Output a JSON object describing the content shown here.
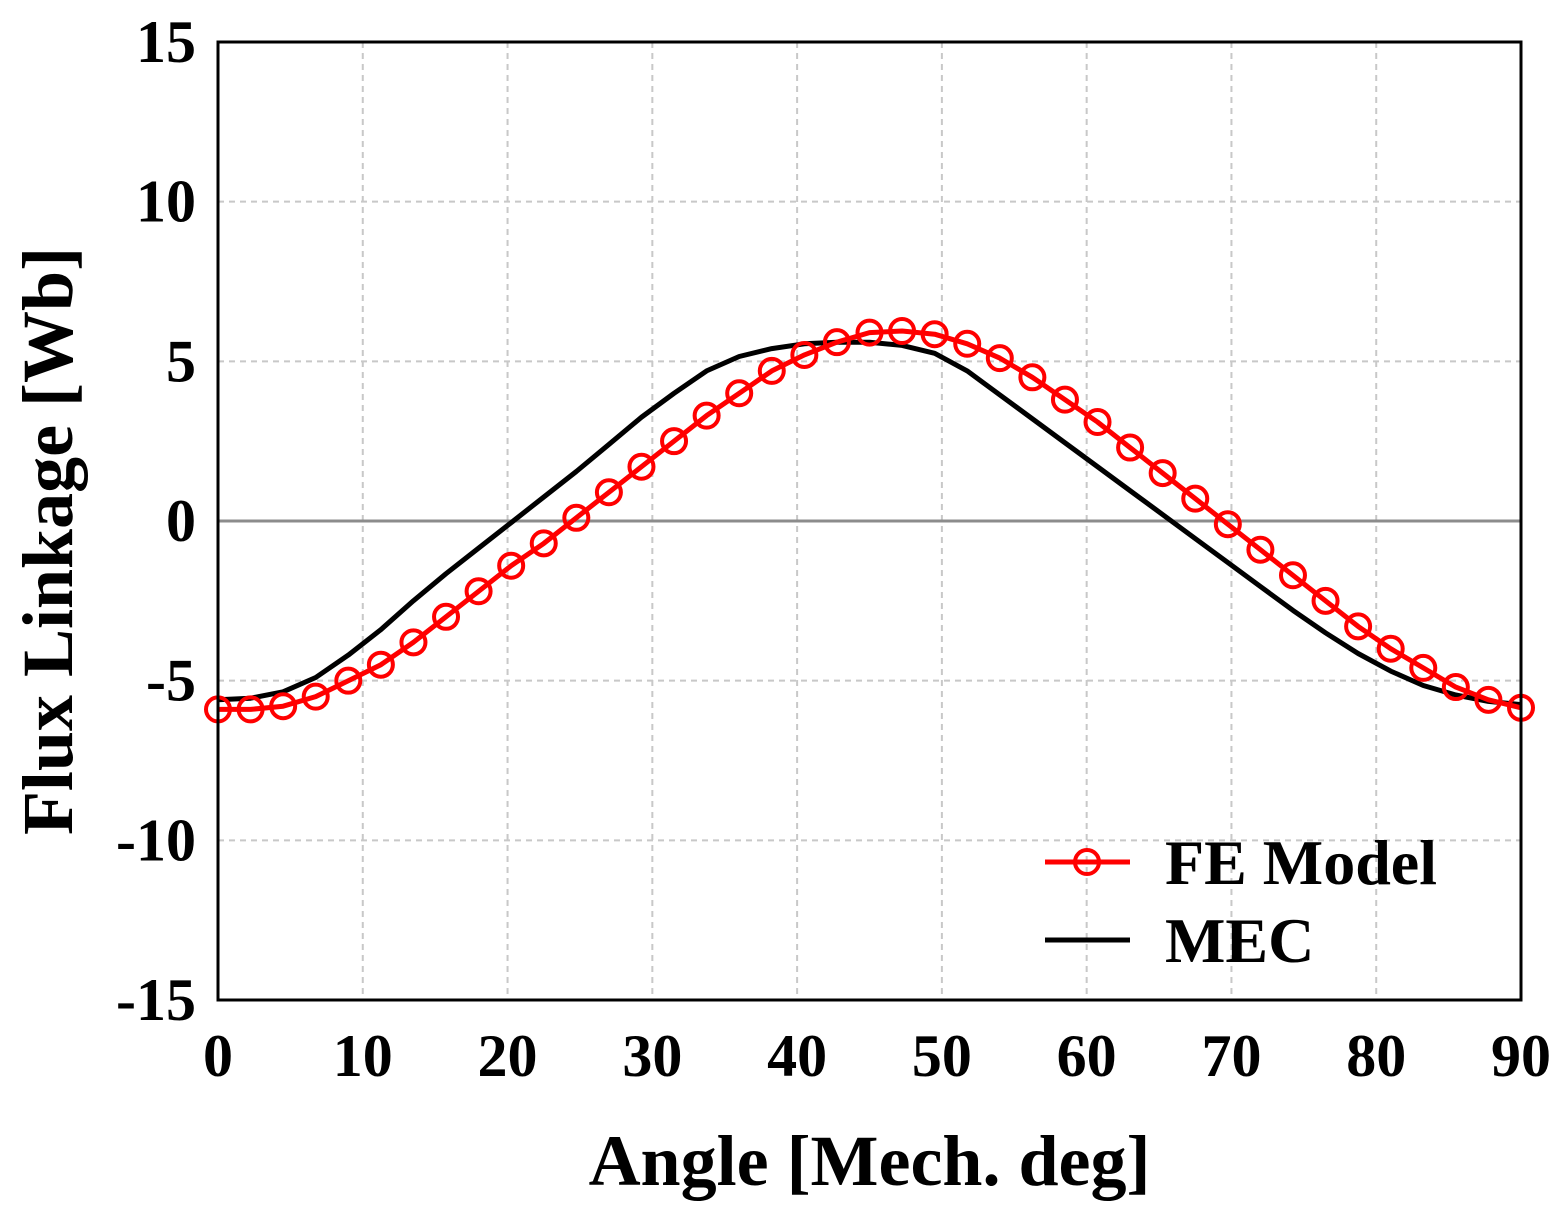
{
  "chart_data": {
    "type": "line",
    "title": "",
    "xlabel": "Angle [Mech. deg]",
    "ylabel": "Flux Linkage [Wb]",
    "xlim": [
      0,
      90
    ],
    "ylim": [
      -15,
      15
    ],
    "xticks": [
      0,
      10,
      20,
      30,
      40,
      50,
      60,
      70,
      80,
      90
    ],
    "yticks": [
      -15,
      -10,
      -5,
      0,
      5,
      10,
      15
    ],
    "xtick_labels": [
      "0",
      "10",
      "20",
      "30",
      "40",
      "50",
      "60",
      "70",
      "80",
      "90"
    ],
    "ytick_labels": [
      "-15",
      "-10",
      "-5",
      "0",
      "5",
      "10",
      "15"
    ],
    "grid": true,
    "legend_position": "bottom-right",
    "series": [
      {
        "name": "FE Model",
        "color": "#ff0000",
        "marker": "circle",
        "x": [
          0,
          2.25,
          4.5,
          6.75,
          9,
          11.25,
          13.5,
          15.75,
          18,
          20.25,
          22.5,
          24.75,
          27,
          29.25,
          31.5,
          33.75,
          36,
          38.25,
          40.5,
          42.75,
          45,
          47.25,
          49.5,
          51.75,
          54,
          56.25,
          58.5,
          60.75,
          63,
          65.25,
          67.5,
          69.75,
          72,
          74.25,
          76.5,
          78.75,
          81,
          83.25,
          85.5,
          87.75,
          90
        ],
        "y": [
          -5.9,
          -5.9,
          -5.8,
          -5.5,
          -5.0,
          -4.5,
          -3.8,
          -3.0,
          -2.2,
          -1.4,
          -0.7,
          0.1,
          0.9,
          1.7,
          2.5,
          3.3,
          4.0,
          4.7,
          5.2,
          5.6,
          5.9,
          5.95,
          5.85,
          5.55,
          5.1,
          4.5,
          3.8,
          3.1,
          2.3,
          1.5,
          0.7,
          -0.1,
          -0.9,
          -1.7,
          -2.5,
          -3.3,
          -4.0,
          -4.6,
          -5.2,
          -5.6,
          -5.85
        ]
      },
      {
        "name": "MEC",
        "color": "#000000",
        "marker": "none",
        "x": [
          0,
          2.25,
          4.5,
          6.75,
          9,
          11.25,
          13.5,
          15.75,
          18,
          20.25,
          22.5,
          24.75,
          27,
          29.25,
          31.5,
          33.75,
          36,
          38.25,
          40.5,
          42.75,
          45,
          47.25,
          49.5,
          51.75,
          54,
          56.25,
          58.5,
          60.75,
          63,
          65.25,
          67.5,
          69.75,
          72,
          74.25,
          76.5,
          78.75,
          81,
          83.25,
          85.5,
          87.75,
          90
        ],
        "y": [
          -5.6,
          -5.55,
          -5.35,
          -4.9,
          -4.2,
          -3.4,
          -2.5,
          -1.65,
          -0.85,
          -0.05,
          0.75,
          1.55,
          2.4,
          3.25,
          4.0,
          4.7,
          5.15,
          5.4,
          5.55,
          5.6,
          5.6,
          5.5,
          5.25,
          4.7,
          3.95,
          3.2,
          2.45,
          1.7,
          0.95,
          0.2,
          -0.55,
          -1.3,
          -2.05,
          -2.8,
          -3.5,
          -4.15,
          -4.7,
          -5.15,
          -5.45,
          -5.65,
          -5.75
        ]
      }
    ],
    "legend": [
      {
        "label": "FE Model",
        "color": "#ff0000",
        "marker": "circle"
      },
      {
        "label": "MEC",
        "color": "#000000",
        "marker": "none"
      }
    ]
  }
}
